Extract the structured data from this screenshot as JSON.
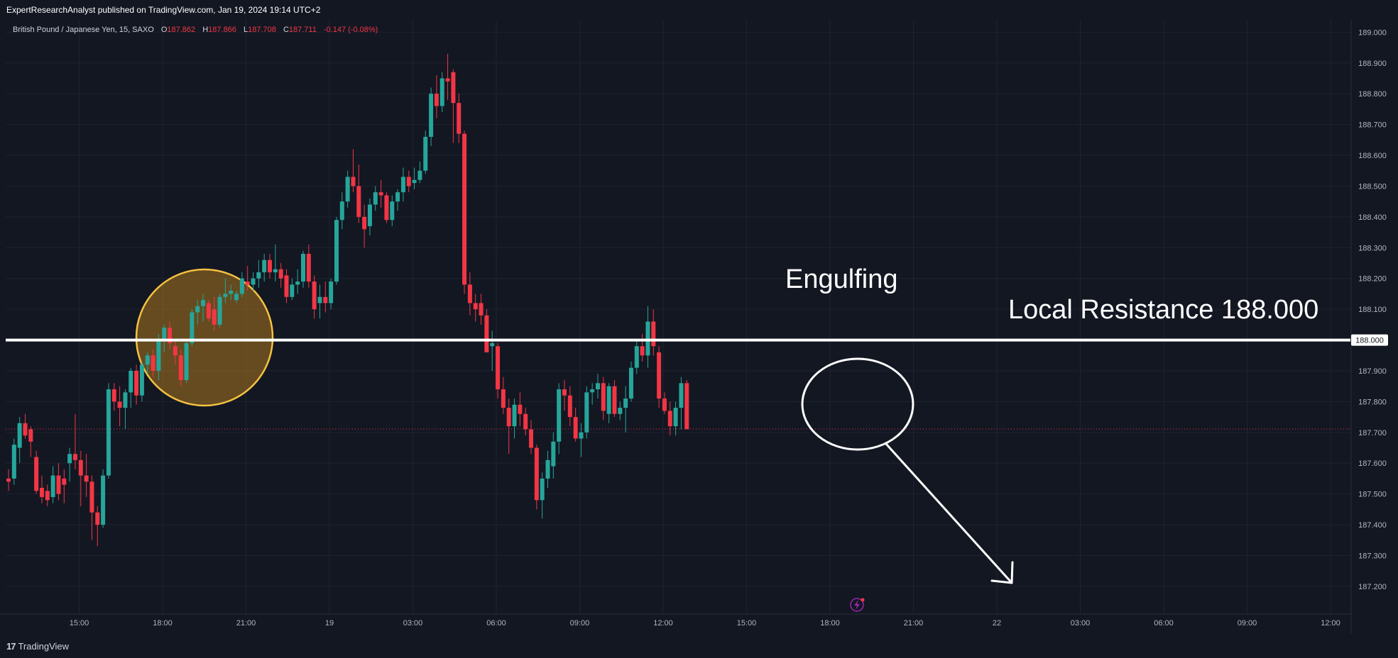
{
  "header": {
    "publisher_line": "ExpertResearchAnalyst published on TradingView.com, Jan 19, 2024 19:14 UTC+2"
  },
  "legend": {
    "symbol": "British Pound / Japanese Yen, 15, SAXO",
    "o_label": "O",
    "o_value": "187.862",
    "h_label": "H",
    "h_value": "187.866",
    "l_label": "L",
    "l_value": "187.708",
    "c_label": "C",
    "c_value": "187.711",
    "change": "-0.147 (-0.08%)"
  },
  "footer": {
    "brand": "TradingView",
    "brand_mark": "17"
  },
  "colors": {
    "background": "#131722",
    "grid": "#1f2330",
    "bull": "#26a69a",
    "bear": "#f23645",
    "axis_text": "#b2b5be",
    "annotation": "#ffffff",
    "highlight_fill": "#a9761e",
    "highlight_stroke": "#f5c242"
  },
  "chart_data": {
    "type": "candlestick",
    "title": "British Pound / Japanese Yen, 15, SAXO",
    "ylim": [
      187.11,
      189.04
    ],
    "y_ticks": [
      "189.000",
      "188.900",
      "188.800",
      "188.700",
      "188.600",
      "188.500",
      "188.400",
      "188.300",
      "188.200",
      "188.100",
      "188.000",
      "187.900",
      "187.800",
      "187.700",
      "187.600",
      "187.500",
      "187.400",
      "187.300",
      "187.200"
    ],
    "x_ticks": [
      "15:00",
      "18:00",
      "21:00",
      "19",
      "03:00",
      "06:00",
      "09:00",
      "12:00",
      "15:00",
      "18:00",
      "21:00",
      "22",
      "03:00",
      "06:00",
      "09:00",
      "12:00"
    ],
    "last_price": 187.711,
    "candles": [
      {
        "o": 187.55,
        "h": 187.58,
        "l": 187.51,
        "c": 187.54
      },
      {
        "o": 187.55,
        "h": 187.68,
        "l": 187.53,
        "c": 187.66
      },
      {
        "o": 187.65,
        "h": 187.75,
        "l": 187.6,
        "c": 187.73
      },
      {
        "o": 187.73,
        "h": 187.76,
        "l": 187.68,
        "c": 187.69
      },
      {
        "o": 187.71,
        "h": 187.72,
        "l": 187.62,
        "c": 187.67
      },
      {
        "o": 187.62,
        "h": 187.64,
        "l": 187.5,
        "c": 187.51
      },
      {
        "o": 187.52,
        "h": 187.56,
        "l": 187.47,
        "c": 187.49
      },
      {
        "o": 187.51,
        "h": 187.53,
        "l": 187.46,
        "c": 187.48
      },
      {
        "o": 187.49,
        "h": 187.59,
        "l": 187.47,
        "c": 187.56
      },
      {
        "o": 187.56,
        "h": 187.6,
        "l": 187.48,
        "c": 187.5
      },
      {
        "o": 187.55,
        "h": 187.58,
        "l": 187.47,
        "c": 187.53
      },
      {
        "o": 187.6,
        "h": 187.65,
        "l": 187.54,
        "c": 187.63
      },
      {
        "o": 187.63,
        "h": 187.76,
        "l": 187.58,
        "c": 187.61
      },
      {
        "o": 187.61,
        "h": 187.64,
        "l": 187.46,
        "c": 187.56
      },
      {
        "o": 187.56,
        "h": 187.63,
        "l": 187.49,
        "c": 187.54
      },
      {
        "o": 187.54,
        "h": 187.56,
        "l": 187.35,
        "c": 187.44
      },
      {
        "o": 187.44,
        "h": 187.46,
        "l": 187.33,
        "c": 187.4
      },
      {
        "o": 187.4,
        "h": 187.58,
        "l": 187.39,
        "c": 187.56
      },
      {
        "o": 187.56,
        "h": 187.86,
        "l": 187.55,
        "c": 187.84
      },
      {
        "o": 187.84,
        "h": 187.86,
        "l": 187.77,
        "c": 187.8
      },
      {
        "o": 187.8,
        "h": 187.85,
        "l": 187.72,
        "c": 187.78
      },
      {
        "o": 187.78,
        "h": 187.84,
        "l": 187.71,
        "c": 187.83
      },
      {
        "o": 187.83,
        "h": 187.91,
        "l": 187.78,
        "c": 187.9
      },
      {
        "o": 187.9,
        "h": 187.92,
        "l": 187.79,
        "c": 187.82
      },
      {
        "o": 187.82,
        "h": 187.93,
        "l": 187.8,
        "c": 187.92
      },
      {
        "o": 187.92,
        "h": 187.96,
        "l": 187.89,
        "c": 187.95
      },
      {
        "o": 187.95,
        "h": 187.97,
        "l": 187.88,
        "c": 187.9
      },
      {
        "o": 187.9,
        "h": 188.02,
        "l": 187.87,
        "c": 188.0
      },
      {
        "o": 188.0,
        "h": 188.05,
        "l": 187.96,
        "c": 188.04
      },
      {
        "o": 188.04,
        "h": 188.06,
        "l": 187.97,
        "c": 187.99
      },
      {
        "o": 187.98,
        "h": 188.0,
        "l": 187.92,
        "c": 187.95
      },
      {
        "o": 187.95,
        "h": 187.97,
        "l": 187.85,
        "c": 187.87
      },
      {
        "o": 187.87,
        "h": 188.0,
        "l": 187.86,
        "c": 187.99
      },
      {
        "o": 187.99,
        "h": 188.1,
        "l": 187.98,
        "c": 188.09
      },
      {
        "o": 188.09,
        "h": 188.13,
        "l": 188.05,
        "c": 188.11
      },
      {
        "o": 188.11,
        "h": 188.15,
        "l": 188.06,
        "c": 188.13
      },
      {
        "o": 188.12,
        "h": 188.13,
        "l": 188.06,
        "c": 188.07
      },
      {
        "o": 188.1,
        "h": 188.14,
        "l": 188.03,
        "c": 188.05
      },
      {
        "o": 188.05,
        "h": 188.15,
        "l": 188.04,
        "c": 188.14
      },
      {
        "o": 188.14,
        "h": 188.2,
        "l": 188.12,
        "c": 188.15
      },
      {
        "o": 188.15,
        "h": 188.18,
        "l": 188.13,
        "c": 188.16
      },
      {
        "o": 188.13,
        "h": 188.16,
        "l": 188.12,
        "c": 188.15
      },
      {
        "o": 188.15,
        "h": 188.22,
        "l": 188.14,
        "c": 188.2
      },
      {
        "o": 188.19,
        "h": 188.24,
        "l": 188.16,
        "c": 188.18
      },
      {
        "o": 188.18,
        "h": 188.22,
        "l": 188.16,
        "c": 188.2
      },
      {
        "o": 188.2,
        "h": 188.26,
        "l": 188.17,
        "c": 188.22
      },
      {
        "o": 188.22,
        "h": 188.28,
        "l": 188.19,
        "c": 188.26
      },
      {
        "o": 188.26,
        "h": 188.28,
        "l": 188.2,
        "c": 188.22
      },
      {
        "o": 188.22,
        "h": 188.31,
        "l": 188.19,
        "c": 188.23
      },
      {
        "o": 188.23,
        "h": 188.25,
        "l": 188.17,
        "c": 188.2
      },
      {
        "o": 188.21,
        "h": 188.23,
        "l": 188.12,
        "c": 188.14
      },
      {
        "o": 188.14,
        "h": 188.2,
        "l": 188.13,
        "c": 188.18
      },
      {
        "o": 188.18,
        "h": 188.23,
        "l": 188.15,
        "c": 188.19
      },
      {
        "o": 188.19,
        "h": 188.29,
        "l": 188.17,
        "c": 188.28
      },
      {
        "o": 188.28,
        "h": 188.31,
        "l": 188.17,
        "c": 188.19
      },
      {
        "o": 188.19,
        "h": 188.21,
        "l": 188.07,
        "c": 188.1
      },
      {
        "o": 188.12,
        "h": 188.18,
        "l": 188.07,
        "c": 188.14
      },
      {
        "o": 188.14,
        "h": 188.19,
        "l": 188.09,
        "c": 188.12
      },
      {
        "o": 188.12,
        "h": 188.2,
        "l": 188.1,
        "c": 188.19
      },
      {
        "o": 188.19,
        "h": 188.4,
        "l": 188.18,
        "c": 188.39
      },
      {
        "o": 188.39,
        "h": 188.48,
        "l": 188.36,
        "c": 188.45
      },
      {
        "o": 188.45,
        "h": 188.55,
        "l": 188.43,
        "c": 188.53
      },
      {
        "o": 188.53,
        "h": 188.62,
        "l": 188.48,
        "c": 188.5
      },
      {
        "o": 188.5,
        "h": 188.57,
        "l": 188.38,
        "c": 188.4
      },
      {
        "o": 188.4,
        "h": 188.44,
        "l": 188.3,
        "c": 188.36
      },
      {
        "o": 188.37,
        "h": 188.46,
        "l": 188.34,
        "c": 188.44
      },
      {
        "o": 188.44,
        "h": 188.5,
        "l": 188.42,
        "c": 188.48
      },
      {
        "o": 188.48,
        "h": 188.52,
        "l": 188.43,
        "c": 188.47
      },
      {
        "o": 188.47,
        "h": 188.48,
        "l": 188.38,
        "c": 188.39
      },
      {
        "o": 188.39,
        "h": 188.47,
        "l": 188.37,
        "c": 188.45
      },
      {
        "o": 188.45,
        "h": 188.49,
        "l": 188.42,
        "c": 188.48
      },
      {
        "o": 188.48,
        "h": 188.56,
        "l": 188.45,
        "c": 188.53
      },
      {
        "o": 188.53,
        "h": 188.55,
        "l": 188.48,
        "c": 188.5
      },
      {
        "o": 188.51,
        "h": 188.56,
        "l": 188.49,
        "c": 188.52
      },
      {
        "o": 188.52,
        "h": 188.58,
        "l": 188.51,
        "c": 188.55
      },
      {
        "o": 188.55,
        "h": 188.68,
        "l": 188.54,
        "c": 188.66
      },
      {
        "o": 188.66,
        "h": 188.82,
        "l": 188.63,
        "c": 188.8
      },
      {
        "o": 188.8,
        "h": 188.86,
        "l": 188.72,
        "c": 188.76
      },
      {
        "o": 188.76,
        "h": 188.87,
        "l": 188.74,
        "c": 188.85
      },
      {
        "o": 188.85,
        "h": 188.93,
        "l": 188.78,
        "c": 188.84
      },
      {
        "o": 188.87,
        "h": 188.88,
        "l": 188.64,
        "c": 188.77
      },
      {
        "o": 188.77,
        "h": 188.8,
        "l": 188.64,
        "c": 188.67
      },
      {
        "o": 188.67,
        "h": 188.68,
        "l": 188.15,
        "c": 188.18
      },
      {
        "o": 188.18,
        "h": 188.22,
        "l": 188.08,
        "c": 188.12
      },
      {
        "o": 188.12,
        "h": 188.15,
        "l": 188.06,
        "c": 188.1
      },
      {
        "o": 188.12,
        "h": 188.15,
        "l": 188.05,
        "c": 188.08
      },
      {
        "o": 188.08,
        "h": 188.1,
        "l": 187.96,
        "c": 187.96
      },
      {
        "o": 187.98,
        "h": 188.03,
        "l": 187.9,
        "c": 187.99
      },
      {
        "o": 187.98,
        "h": 187.99,
        "l": 187.81,
        "c": 187.84
      },
      {
        "o": 187.84,
        "h": 187.88,
        "l": 187.76,
        "c": 187.78
      },
      {
        "o": 187.78,
        "h": 187.81,
        "l": 187.63,
        "c": 187.72
      },
      {
        "o": 187.72,
        "h": 187.81,
        "l": 187.68,
        "c": 187.79
      },
      {
        "o": 187.79,
        "h": 187.83,
        "l": 187.72,
        "c": 187.76
      },
      {
        "o": 187.76,
        "h": 187.78,
        "l": 187.69,
        "c": 187.71
      },
      {
        "o": 187.71,
        "h": 187.74,
        "l": 187.63,
        "c": 187.65
      },
      {
        "o": 187.65,
        "h": 187.66,
        "l": 187.45,
        "c": 187.48
      },
      {
        "o": 187.48,
        "h": 187.57,
        "l": 187.42,
        "c": 187.55
      },
      {
        "o": 187.55,
        "h": 187.64,
        "l": 187.52,
        "c": 187.61
      },
      {
        "o": 187.59,
        "h": 187.7,
        "l": 187.55,
        "c": 187.67
      },
      {
        "o": 187.67,
        "h": 187.86,
        "l": 187.63,
        "c": 187.84
      },
      {
        "o": 187.84,
        "h": 187.87,
        "l": 187.77,
        "c": 187.82
      },
      {
        "o": 187.82,
        "h": 187.85,
        "l": 187.72,
        "c": 187.75
      },
      {
        "o": 187.75,
        "h": 187.78,
        "l": 187.67,
        "c": 187.68
      },
      {
        "o": 187.68,
        "h": 187.73,
        "l": 187.62,
        "c": 187.7
      },
      {
        "o": 187.7,
        "h": 187.85,
        "l": 187.68,
        "c": 187.83
      },
      {
        "o": 187.83,
        "h": 187.86,
        "l": 187.79,
        "c": 187.84
      },
      {
        "o": 187.84,
        "h": 187.89,
        "l": 187.81,
        "c": 187.86
      },
      {
        "o": 187.86,
        "h": 187.88,
        "l": 187.74,
        "c": 187.77
      },
      {
        "o": 187.76,
        "h": 187.86,
        "l": 187.73,
        "c": 187.85
      },
      {
        "o": 187.85,
        "h": 187.87,
        "l": 187.75,
        "c": 187.76
      },
      {
        "o": 187.76,
        "h": 187.8,
        "l": 187.74,
        "c": 187.78
      },
      {
        "o": 187.78,
        "h": 187.85,
        "l": 187.7,
        "c": 187.81
      },
      {
        "o": 187.81,
        "h": 187.93,
        "l": 187.8,
        "c": 187.91
      },
      {
        "o": 187.91,
        "h": 188.0,
        "l": 187.89,
        "c": 187.98
      },
      {
        "o": 187.98,
        "h": 188.02,
        "l": 187.93,
        "c": 187.95
      },
      {
        "o": 187.95,
        "h": 188.11,
        "l": 187.91,
        "c": 188.06
      },
      {
        "o": 188.06,
        "h": 188.1,
        "l": 187.95,
        "c": 187.98
      },
      {
        "o": 187.96,
        "h": 187.98,
        "l": 187.78,
        "c": 187.81
      },
      {
        "o": 187.81,
        "h": 187.83,
        "l": 187.76,
        "c": 187.77
      },
      {
        "o": 187.77,
        "h": 187.8,
        "l": 187.69,
        "c": 187.72
      },
      {
        "o": 187.72,
        "h": 187.8,
        "l": 187.69,
        "c": 187.78
      },
      {
        "o": 187.78,
        "h": 187.88,
        "l": 187.71,
        "c": 187.86
      },
      {
        "o": 187.86,
        "h": 187.87,
        "l": 187.71,
        "c": 187.71
      }
    ],
    "annotations": [
      {
        "text": "Engulfing",
        "price": 188.17
      },
      {
        "text": "Local Resistance 188.000",
        "price": 188.07
      }
    ],
    "resistance_level": 188.0,
    "resistance_label": "188.000"
  }
}
